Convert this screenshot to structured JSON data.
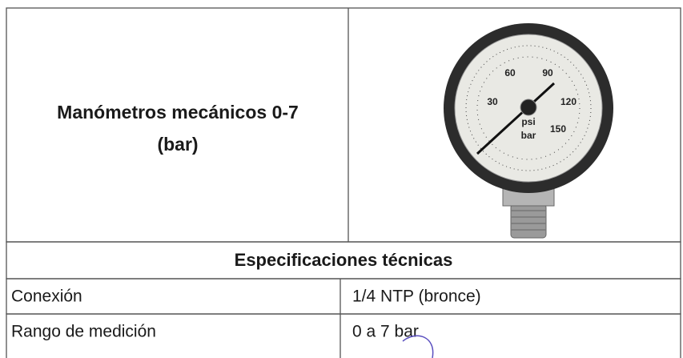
{
  "product": {
    "title_lines": [
      "Manómetros mecánicos 0-7",
      "(bar)"
    ]
  },
  "gauge": {
    "scale_labels": [
      "30",
      "60",
      "90",
      "120",
      "150"
    ],
    "units": [
      "psi",
      "bar"
    ]
  },
  "specs": {
    "heading": "Especificaciones técnicas",
    "rows": [
      [
        "Conexión",
        "1/4 NTP (bronce)"
      ],
      [
        "Rango de medición",
        "0 a 7 bar"
      ]
    ]
  }
}
